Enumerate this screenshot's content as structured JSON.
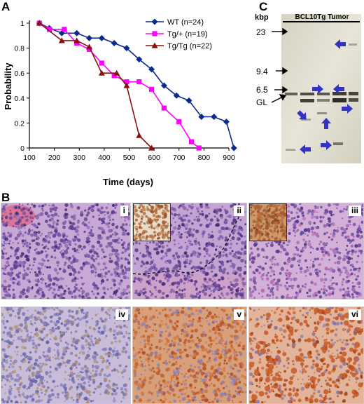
{
  "figure": {
    "panel_labels": {
      "a": "A",
      "b": "B",
      "c": "C"
    },
    "panel_c": {
      "header": "BCL10Tg Tumor",
      "unit": "kbp",
      "markers": [
        "23",
        "9.4",
        "6.5",
        "GL"
      ]
    },
    "panel_b": {
      "labels": [
        "i",
        "ii",
        "iii",
        "iv",
        "v",
        "vi"
      ]
    }
  },
  "chart_data": {
    "type": "line",
    "xlabel": "Time (days)",
    "ylabel": "Probability",
    "xlim": [
      100,
      900
    ],
    "ylim": [
      0,
      1
    ],
    "xticks": [
      100,
      200,
      300,
      400,
      500,
      600,
      700,
      800,
      900
    ],
    "yticks": [
      0,
      0.2,
      0.4,
      0.6,
      0.8,
      1
    ],
    "legend_position": "top-right",
    "series": [
      {
        "name": "WT (n=24)",
        "color": "#0a2a8c",
        "marker": "diamond",
        "x": [
          140,
          180,
          230,
          290,
          340,
          390,
          440,
          490,
          540,
          590,
          640,
          690,
          740,
          790,
          840,
          890,
          920
        ],
        "y": [
          1.0,
          0.96,
          0.92,
          0.92,
          0.88,
          0.88,
          0.84,
          0.8,
          0.71,
          0.63,
          0.5,
          0.42,
          0.38,
          0.25,
          0.25,
          0.21,
          0.0
        ]
      },
      {
        "name": "Tg/+ (n=19)",
        "color": "#ff00ff",
        "marker": "square",
        "x": [
          140,
          180,
          240,
          290,
          340,
          390,
          440,
          490,
          540,
          590,
          640,
          700,
          750,
          780
        ],
        "y": [
          1.0,
          0.95,
          0.95,
          0.84,
          0.79,
          0.68,
          0.58,
          0.53,
          0.53,
          0.47,
          0.32,
          0.21,
          0.05,
          0.0
        ]
      },
      {
        "name": "Tg/Tg (n=22)",
        "color": "#8a1010",
        "marker": "triangle",
        "x": [
          140,
          230,
          290,
          340,
          390,
          450,
          490,
          540,
          590
        ],
        "y": [
          1.0,
          0.86,
          0.86,
          0.81,
          0.6,
          0.6,
          0.5,
          0.1,
          0.0
        ]
      }
    ]
  }
}
